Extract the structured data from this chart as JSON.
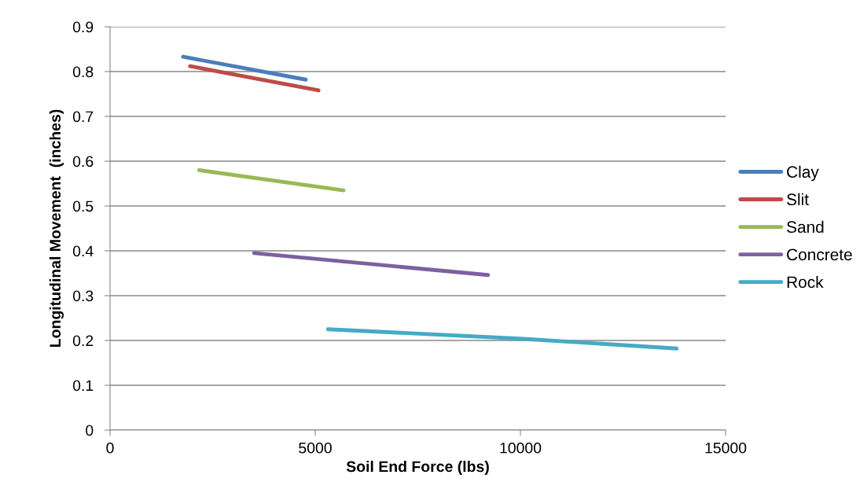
{
  "chart_data": {
    "type": "line",
    "xlabel": "Soil End Force (lbs)",
    "ylabel": "Longitudinal Movement  (inches)",
    "xlim": [
      0,
      15000
    ],
    "xticks": [
      0,
      5000,
      10000,
      15000
    ],
    "ylim": [
      0,
      0.9
    ],
    "yticks": [
      0,
      0.1,
      0.2,
      0.3,
      0.4,
      0.5,
      0.6,
      0.7,
      0.8,
      0.9
    ],
    "grid": "y",
    "legend": "right",
    "marker": "none",
    "line_style": "solid",
    "series": [
      {
        "name": "Clay",
        "color": "#4a7ebb",
        "x": [
          1780,
          4770
        ],
        "values": [
          0.833,
          0.782
        ]
      },
      {
        "name": "Slit",
        "color": "#be4b48",
        "x": [
          1950,
          5080
        ],
        "values": [
          0.812,
          0.758
        ]
      },
      {
        "name": "Sand",
        "color": "#98b954",
        "x": [
          2170,
          5690
        ],
        "values": [
          0.58,
          0.535
        ]
      },
      {
        "name": "Concrete",
        "color": "#7d60a0",
        "x": [
          3510,
          9210
        ],
        "values": [
          0.395,
          0.346
        ]
      },
      {
        "name": "Rock",
        "color": "#46aac5",
        "x": [
          5310,
          10000,
          13810
        ],
        "values": [
          0.225,
          0.204,
          0.182
        ]
      }
    ]
  }
}
